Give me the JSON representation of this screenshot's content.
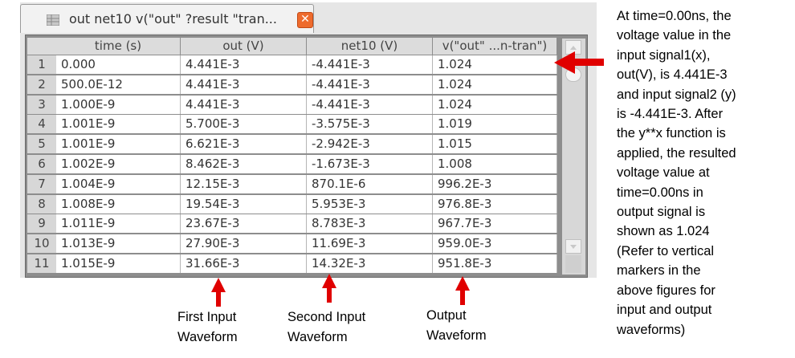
{
  "tab": {
    "title": "out net10 v(\"out\" ?result \"tran...",
    "close_symbol": "✕",
    "icon": "table-icon"
  },
  "table": {
    "columns": [
      "time (s)",
      "out (V)",
      "net10 (V)",
      "v(\"out\" ...n-tran\")"
    ],
    "rows": [
      {
        "n": "1",
        "cells": [
          "0.000",
          "4.441E-3",
          "-4.441E-3",
          "1.024"
        ]
      },
      {
        "n": "2",
        "cells": [
          "500.0E-12",
          "4.441E-3",
          "-4.441E-3",
          "1.024"
        ]
      },
      {
        "n": "3",
        "cells": [
          "1.000E-9",
          "4.441E-3",
          "-4.441E-3",
          "1.024"
        ]
      },
      {
        "n": "4",
        "cells": [
          "1.001E-9",
          "5.700E-3",
          "-3.575E-3",
          "1.019"
        ]
      },
      {
        "n": "5",
        "cells": [
          "1.001E-9",
          "6.621E-3",
          "-2.942E-3",
          "1.015"
        ]
      },
      {
        "n": "6",
        "cells": [
          "1.002E-9",
          "8.462E-3",
          "-1.673E-3",
          "1.008"
        ]
      },
      {
        "n": "7",
        "cells": [
          "1.004E-9",
          "12.15E-3",
          "870.1E-6",
          "996.2E-3"
        ]
      },
      {
        "n": "8",
        "cells": [
          "1.008E-9",
          "19.54E-3",
          "5.953E-3",
          "976.8E-3"
        ]
      },
      {
        "n": "9",
        "cells": [
          "1.011E-9",
          "23.67E-3",
          "8.783E-3",
          "967.7E-3"
        ]
      },
      {
        "n": "10",
        "cells": [
          "1.013E-9",
          "27.90E-3",
          "11.69E-3",
          "959.0E-3"
        ]
      },
      {
        "n": "11",
        "cells": [
          "1.015E-9",
          "31.66E-3",
          "14.32E-3",
          "951.8E-3"
        ]
      }
    ]
  },
  "annotation": {
    "text_lines": [
      "At time=0.00ns, the",
      "voltage value in the",
      "input signal1(x),",
      "out(V), is 4.441E-3",
      "and input signal2 (y)",
      "is -4.441E-3. After",
      "the y**x function is",
      "applied, the resulted",
      "voltage value at",
      "time=0.00ns in",
      "output signal is",
      "shown as 1.024",
      "(Refer to vertical",
      "markers in the",
      "above figures for",
      "input and output",
      "waveforms)"
    ]
  },
  "labels": {
    "first_input": [
      "First Input",
      "Waveform"
    ],
    "second_input": [
      "Second Input",
      "Waveform"
    ],
    "output": [
      "Output",
      "Waveform"
    ]
  },
  "colors": {
    "arrow": "#e00000",
    "close_button": "#ee6b2d",
    "grid_frame": "#8d8d8d"
  }
}
